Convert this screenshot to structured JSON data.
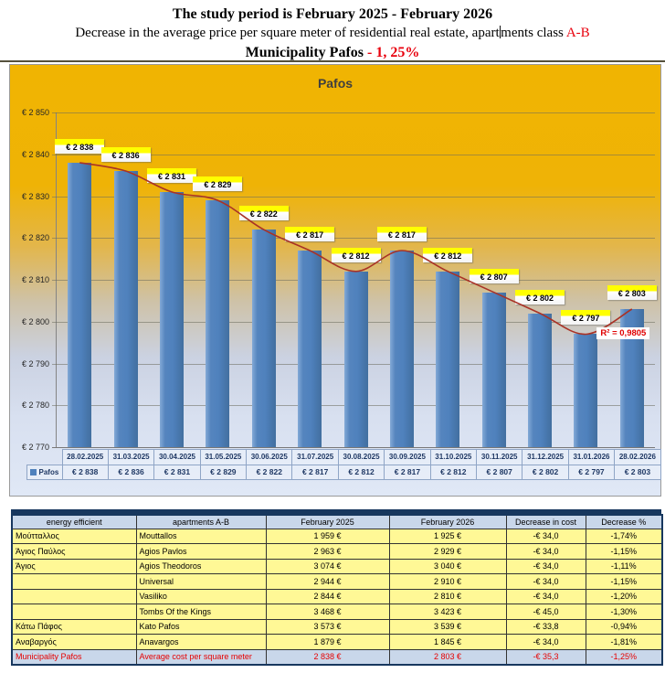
{
  "header": {
    "line1": "The study period is February 2025 - February 2026",
    "line2_before_caret": "Decrease in the average price per square meter of residential real estate, apart",
    "line2_after_caret": "ments class ",
    "line2_class": "A-B",
    "line3_black": "Municipality Pafos ",
    "line3_red": "- 1, 25%"
  },
  "chart_data": {
    "type": "bar",
    "title": "Pafos",
    "categories": [
      "28.02.2025",
      "31.03.2025",
      "30.04.2025",
      "31.05.2025",
      "30.06.2025",
      "31.07.2025",
      "30.08.2025",
      "30.09.2025",
      "31.10.2025",
      "30.11.2025",
      "31.12.2025",
      "31.01.2026",
      "28.02.2026"
    ],
    "series": [
      {
        "name": "Pafos",
        "values": [
          2838,
          2836,
          2831,
          2829,
          2822,
          2817,
          2812,
          2817,
          2812,
          2807,
          2802,
          2797,
          2803
        ]
      }
    ],
    "value_labels": [
      "€ 2 838",
      "€ 2 836",
      "€ 2 831",
      "€ 2 829",
      "€ 2 822",
      "€ 2 817",
      "€ 2 812",
      "€ 2 817",
      "€ 2 812",
      "€ 2 807",
      "€ 2 802",
      "€ 2 797",
      "€ 2 803"
    ],
    "ylim": [
      2770,
      2850
    ],
    "ytick_step": 10,
    "ytick_labels": [
      "€ 2 770",
      "€ 2 780",
      "€ 2 790",
      "€ 2 800",
      "€ 2 810",
      "€ 2 820",
      "€ 2 830",
      "€ 2 840",
      "€ 2 850"
    ],
    "grid": true,
    "legend_position": "bottom-table",
    "trendline": {
      "kind": "polynomial",
      "r2_label": "R² = 0,9805",
      "color": "#a93226"
    },
    "colors": {
      "bar": "#4f81bd",
      "trend": "#a93226",
      "bg_top": "#f0b400",
      "bg_bottom": "#e0e8f6",
      "label_highlight": "#ffff00"
    }
  },
  "summary_table": {
    "headers": [
      "energy efficient",
      "apartments A-B",
      "February 2025",
      "February 2026",
      "Decrease in cost",
      "Decrease %"
    ],
    "rows": [
      [
        "Μούτταλλος",
        "Mouttallos",
        "1 959 €",
        "1 925 €",
        "-€ 34,0",
        "-1,74%"
      ],
      [
        "Άγιος Παύλος",
        "Agios Pavlos",
        "2 963 €",
        "2 929 €",
        "-€ 34,0",
        "-1,15%"
      ],
      [
        "Άγιος",
        "Agios Theodoros",
        "3 074 €",
        "3 040 €",
        "-€ 34,0",
        "-1,11%"
      ],
      [
        "",
        "Universal",
        "2 944 €",
        "2 910 €",
        "-€ 34,0",
        "-1,15%"
      ],
      [
        "",
        "Vasiliko",
        "2 844 €",
        "2 810 €",
        "-€ 34,0",
        "-1,20%"
      ],
      [
        "",
        "Tombs Of the Kings",
        "3 468 €",
        "3 423 €",
        "-€ 45,0",
        "-1,30%"
      ],
      [
        "Κάτω Πάφος",
        "Kato Pafos",
        "3 573 €",
        "3 539 €",
        "-€ 33,8",
        "-0,94%"
      ],
      [
        "Αναβαργός",
        "Anavargos",
        "1 879 €",
        "1 845 €",
        "-€ 34,0",
        "-1,81%"
      ]
    ],
    "total_row": [
      "Municipality Pafos",
      "Average cost per square meter",
      "2 838 €",
      "2 803 €",
      "-€ 35,3",
      "-1,25%"
    ]
  }
}
